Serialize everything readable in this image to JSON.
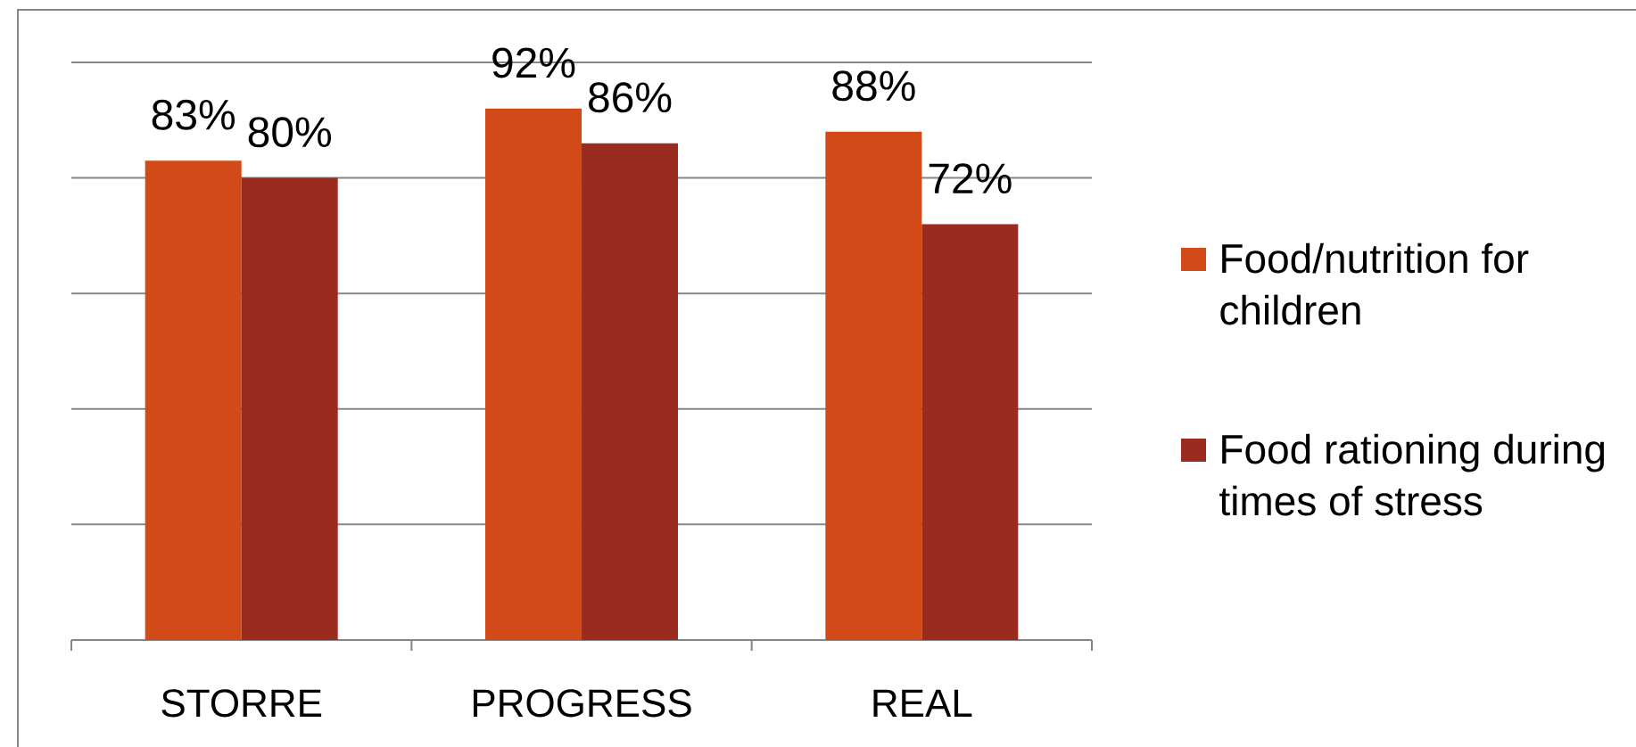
{
  "chart_data": {
    "type": "bar",
    "categories": [
      "STORRE",
      "PROGRESS",
      "REAL"
    ],
    "series": [
      {
        "name": "Food/nutrition for children",
        "color": "#d24a17",
        "values": [
          83,
          92,
          88
        ],
        "value_labels": [
          "83%",
          "92%",
          "88%"
        ]
      },
      {
        "name": "Food rationing during times of stress",
        "color": "#9a2c1f",
        "values": [
          80,
          86,
          72
        ],
        "value_labels": [
          "80%",
          "86%",
          "72%"
        ]
      }
    ],
    "ylim": [
      0,
      100
    ],
    "yticks": [
      {
        "value": 0,
        "label": null
      },
      {
        "value": 20,
        "label": null
      },
      {
        "value": 40,
        "label": null
      },
      {
        "value": 60,
        "label": null
      },
      {
        "value": 80,
        "label": null
      },
      {
        "value": 100,
        "label": null
      }
    ],
    "grid": "y",
    "legend": "right",
    "tick_labels": "x"
  }
}
